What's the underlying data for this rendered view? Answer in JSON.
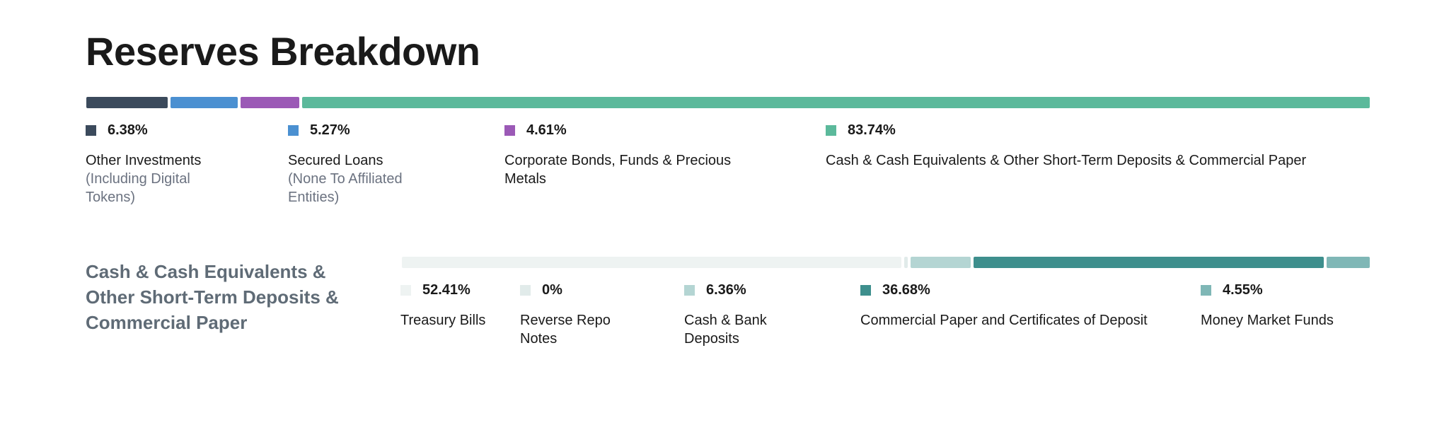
{
  "title": "Reserves Breakdown",
  "colors": {
    "other_investments": "#3b4a5c",
    "secured_loans": "#4b90d1",
    "corporate_bonds": "#9b59b6",
    "cash_equivalents": "#5bb99b",
    "treasury_bills": "#eef3f2",
    "reverse_repo": "#e1ebea",
    "cash_bank": "#b4d5d3",
    "commercial_paper": "#3e8f8d",
    "money_market": "#7fb7b6"
  },
  "chart_data": [
    {
      "type": "bar",
      "title": "Reserves Breakdown",
      "series": [
        {
          "name": "Other Investments",
          "sub": "(Including Digital Tokens)",
          "value": 6.38,
          "label": "6.38%",
          "color": "#3b4a5c"
        },
        {
          "name": "Secured Loans",
          "sub": "(None To Affiliated Entities)",
          "value": 5.27,
          "label": "5.27%",
          "color": "#4b90d1"
        },
        {
          "name": "Corporate Bonds, Funds & Precious Metals",
          "sub": "",
          "value": 4.61,
          "label": "4.61%",
          "color": "#9b59b6"
        },
        {
          "name": "Cash & Cash Equivalents & Other Short-Term Deposits & Commercial Paper",
          "sub": "",
          "value": 83.74,
          "label": "83.74%",
          "color": "#5bb99b"
        }
      ]
    },
    {
      "type": "bar",
      "title": "Cash & Cash Equivalents & Other Short-Term Deposits & Commercial Paper",
      "series": [
        {
          "name": "Treasury Bills",
          "value": 52.41,
          "label": "52.41%",
          "color": "#eef3f2"
        },
        {
          "name": "Reverse Repo Notes",
          "value": 0,
          "label": "0%",
          "color": "#e1ebea"
        },
        {
          "name": "Cash & Bank Deposits",
          "value": 6.36,
          "label": "6.36%",
          "color": "#b4d5d3"
        },
        {
          "name": "Commercial Paper and Certificates of Deposit",
          "value": 36.68,
          "label": "36.68%",
          "color": "#3e8f8d"
        },
        {
          "name": "Money Market Funds",
          "value": 4.55,
          "label": "4.55%",
          "color": "#7fb7b6"
        }
      ]
    }
  ]
}
